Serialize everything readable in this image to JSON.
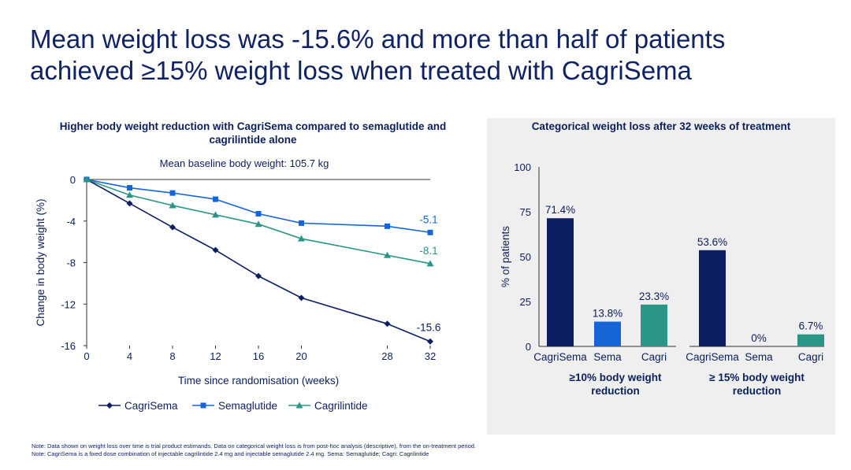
{
  "title": "Mean weight loss was -15.6% and more than half of patients achieved ≥15% weight loss when treated with CagriSema",
  "colors": {
    "cagrisema": "#0d1f63",
    "sema": "#1565d8",
    "cagri": "#2a9688",
    "title": "#0f2266",
    "panel": "#efefef"
  },
  "chart_data": [
    {
      "type": "line",
      "title": "Higher body weight reduction with CagriSema compared to semaglutide and cagrilintide alone",
      "subtitle": "Mean baseline body weight: 105.7 kg",
      "xlabel": "Time since randomisation (weeks)",
      "ylabel": "Change in body weight (%)",
      "x": [
        0,
        4,
        8,
        12,
        16,
        20,
        28,
        32
      ],
      "xticks": [
        "0",
        "4",
        "8",
        "12",
        "16",
        "20",
        "28",
        "32"
      ],
      "yticks": [
        "0",
        "-4",
        "-8",
        "-12",
        "-16"
      ],
      "ylim": [
        -16,
        0
      ],
      "xlim": [
        0,
        32
      ],
      "series": [
        {
          "name": "CagriSema",
          "key": "cagrisema",
          "marker": "diamond",
          "values": [
            0,
            -2.3,
            -4.6,
            -6.8,
            -9.3,
            -11.4,
            -13.9,
            -15.6
          ],
          "end_label": "-15.6"
        },
        {
          "name": "Semaglutide",
          "key": "sema",
          "marker": "square",
          "values": [
            0,
            -0.8,
            -1.3,
            -1.9,
            -3.3,
            -4.2,
            -4.5,
            -5.1
          ],
          "end_label": "-5.1"
        },
        {
          "name": "Cagrilintide",
          "key": "cagri",
          "marker": "triangle",
          "values": [
            0,
            -1.5,
            -2.5,
            -3.4,
            -4.3,
            -5.7,
            -7.3,
            -8.1
          ],
          "end_label": "-8.1"
        }
      ],
      "legend": [
        "CagriSema",
        "Semaglutide",
        "Cagrilintide"
      ]
    },
    {
      "type": "bar",
      "title": "Categorical weight loss after 32 weeks of treatment",
      "ylabel": "% of patients",
      "yticks": [
        "0",
        "25",
        "50",
        "75",
        "100"
      ],
      "ylim": [
        0,
        100
      ],
      "groups": [
        {
          "label": "≥10% body weight reduction",
          "bars": [
            {
              "category": "CagriSema",
              "key": "cagrisema",
              "value": 71.4,
              "label": "71.4%"
            },
            {
              "category": "Sema",
              "key": "sema",
              "value": 13.8,
              "label": "13.8%"
            },
            {
              "category": "Cagri",
              "key": "cagri",
              "value": 23.3,
              "label": "23.3%"
            }
          ]
        },
        {
          "label": "≥ 15% body weight reduction",
          "bars": [
            {
              "category": "CagriSema",
              "key": "cagrisema",
              "value": 53.6,
              "label": "53.6%"
            },
            {
              "category": "Sema",
              "key": "sema",
              "value": 0,
              "label": "0%"
            },
            {
              "category": "Cagri",
              "key": "cagri",
              "value": 6.7,
              "label": "6.7%"
            }
          ]
        }
      ]
    }
  ],
  "notes": [
    "Note: Data shown on weight loss over time is trial product estimands. Data on categorical weight loss is from post-hoc analysis (descriptive), from the on-treatment period.",
    "Note: CagriSema is a fixed dose combination of injectable cagrilintide 2.4 mg and injectable semaglutide 2.4 mg. Sema: Semaglutide; Cagri: Cagrilintide"
  ]
}
